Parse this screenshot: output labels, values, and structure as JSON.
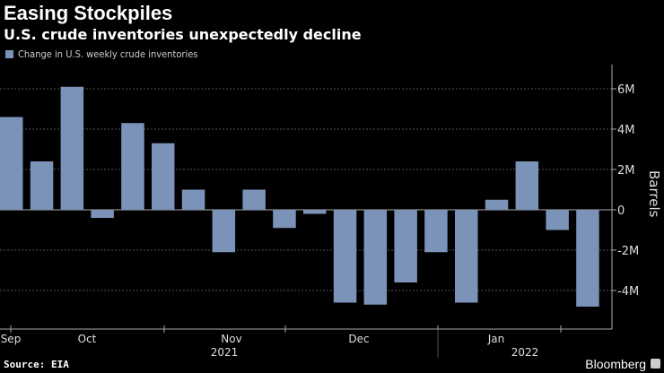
{
  "chart_data": {
    "type": "bar",
    "title": "Easing Stockpiles",
    "subtitle": "U.S. crude inventories unexpectedly decline",
    "legend": [
      "Change in U.S. weekly crude inventories"
    ],
    "ylabel": "Barrels",
    "ylim": [
      -5.1,
      7.3
    ],
    "yticks": [
      {
        "v": 6,
        "label": "6M"
      },
      {
        "v": 4,
        "label": "4M"
      },
      {
        "v": 2,
        "label": "2M"
      },
      {
        "v": 0,
        "label": "0"
      },
      {
        "v": -2,
        "label": "-2M"
      },
      {
        "v": -4,
        "label": "-4M"
      }
    ],
    "month_labels": [
      "Sep",
      "Oct",
      "Nov",
      "Dec",
      "Jan"
    ],
    "year_labels": [
      "2021",
      "2022"
    ],
    "series": [
      {
        "name": "Change in U.S. weekly crude inventories",
        "color": "#7b93b8",
        "values": [
          4.6,
          2.4,
          6.1,
          -0.4,
          4.3,
          3.3,
          1.0,
          -2.1,
          1.0,
          -0.9,
          -0.2,
          -4.6,
          -4.7,
          -3.6,
          -2.1,
          -4.6,
          0.5,
          2.4,
          -1.0,
          -4.8
        ]
      }
    ]
  },
  "footer": {
    "source": "Source: EIA",
    "brand": "Bloomberg"
  }
}
